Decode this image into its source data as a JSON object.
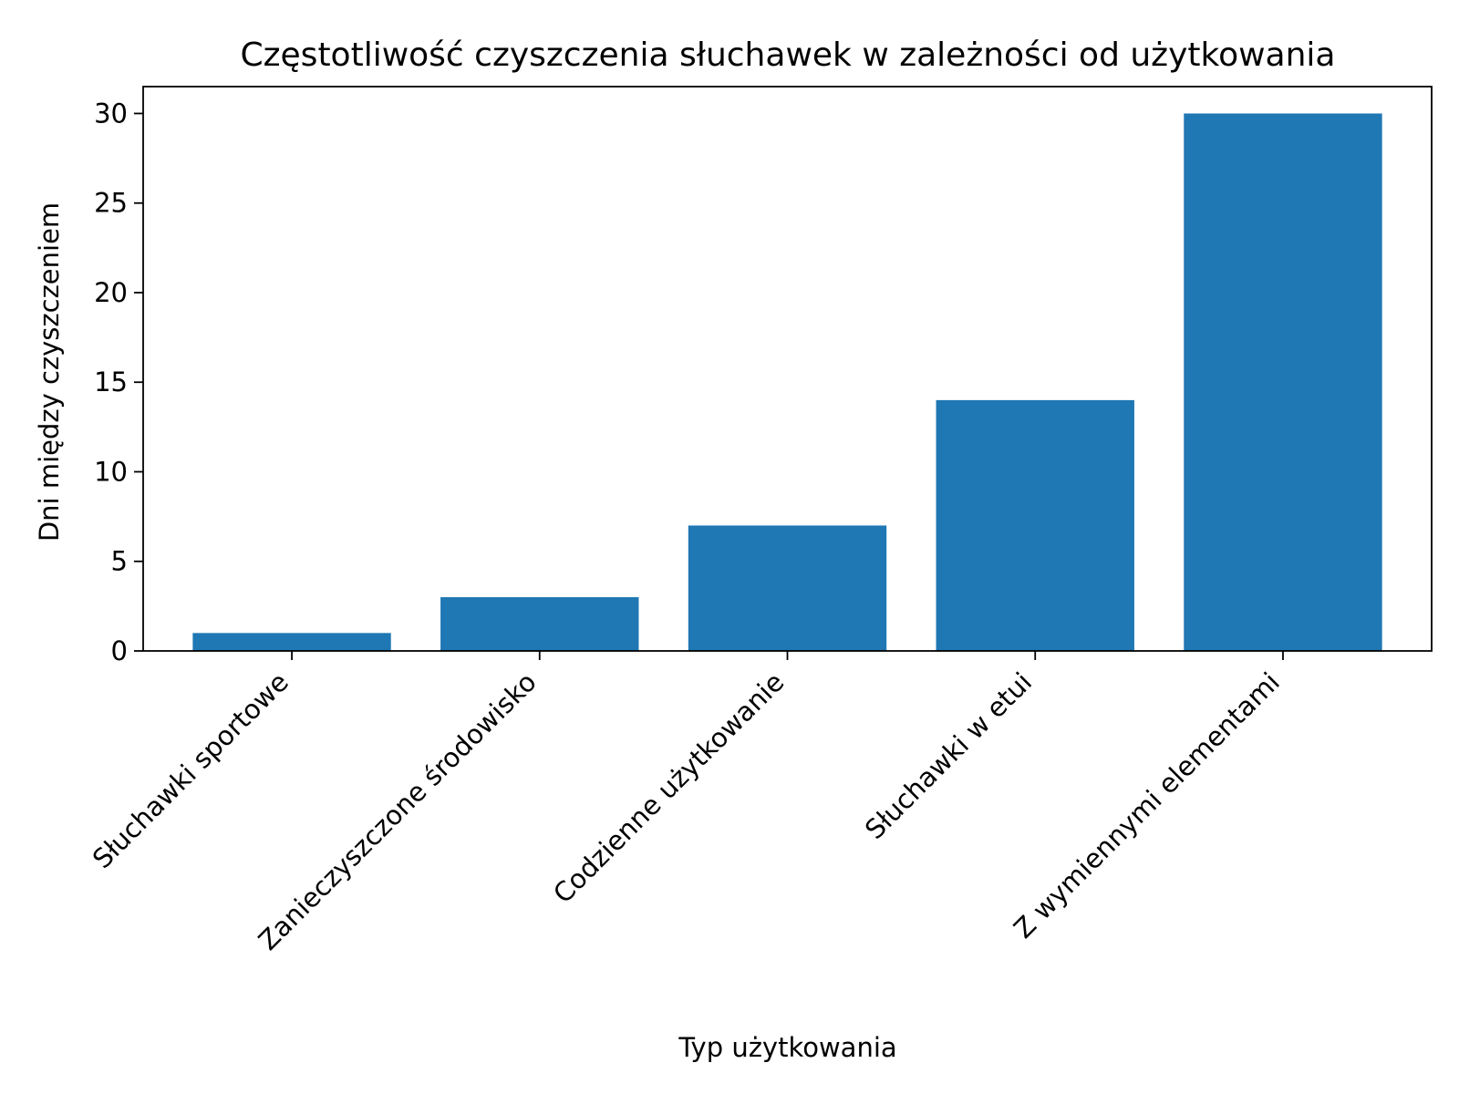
{
  "chart_data": {
    "type": "bar",
    "title": "Częstotliwość czyszczenia słuchawek w zależności od użytkowania",
    "xlabel": "Typ użytkowania",
    "ylabel": "Dni między czyszczeniem",
    "categories": [
      "Słuchawki sportowe",
      "Zanieczyszczone środowisko",
      "Codzienne użytkowanie",
      "Słuchawki w etui",
      "Z wymiennymi elementami"
    ],
    "values": [
      1,
      3,
      7,
      14,
      30
    ],
    "ylim": [
      0,
      31.5
    ],
    "yticks": [
      0,
      5,
      10,
      15,
      20,
      25,
      30
    ],
    "bar_color": "#1f77b4",
    "grid": false
  }
}
